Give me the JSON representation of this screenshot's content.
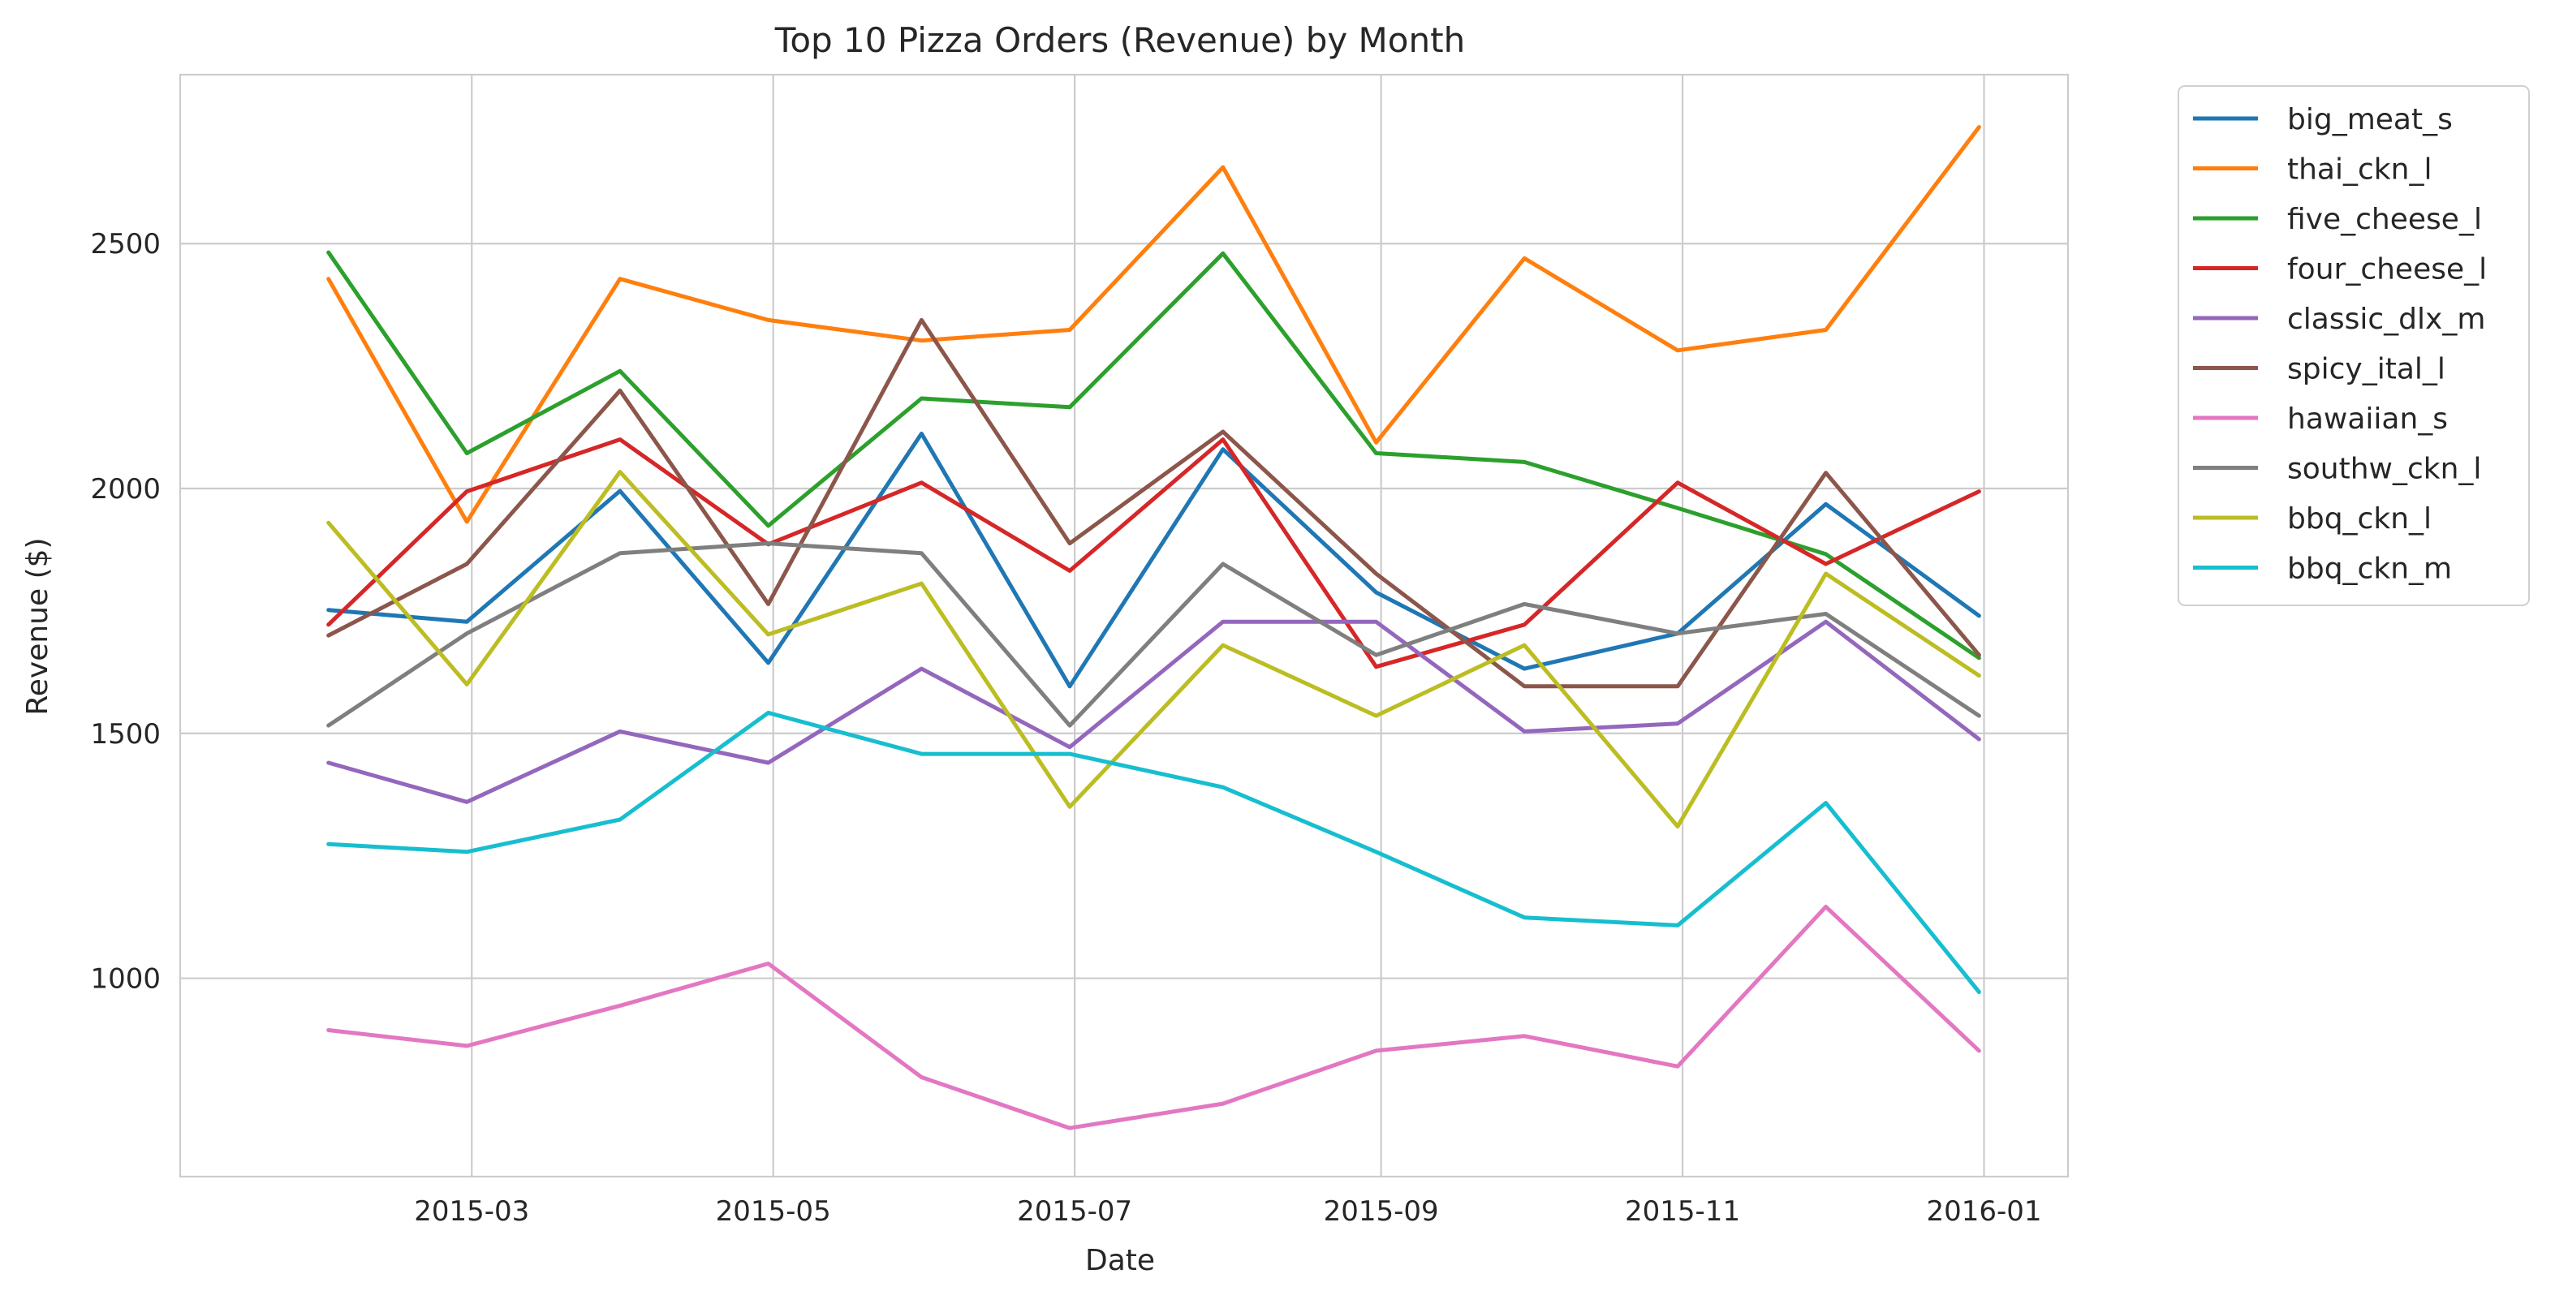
{
  "chart_data": {
    "type": "line",
    "title": "Top 10 Pizza Orders (Revenue) by Month",
    "xlabel": "Date",
    "ylabel": "Revenue ($)",
    "x": [
      "2015-01-31",
      "2015-02-28",
      "2015-03-31",
      "2015-04-30",
      "2015-05-31",
      "2015-06-30",
      "2015-07-31",
      "2015-08-31",
      "2015-09-30",
      "2015-10-31",
      "2015-11-30",
      "2015-12-31"
    ],
    "xlim": [
      "2015-01-01",
      "2016-01-18"
    ],
    "ylim": [
      595,
      2845
    ],
    "x_ticks": [
      "2015-03",
      "2015-05",
      "2015-07",
      "2015-09",
      "2015-11",
      "2016-01"
    ],
    "y_ticks": [
      1000,
      1500,
      2000,
      2500
    ],
    "grid": true,
    "legend_position": "outside-right",
    "series": [
      {
        "name": "big_meat_s",
        "color": "#1f77b4",
        "values": [
          1752,
          1728,
          1995,
          1644,
          2112,
          1596,
          2080,
          1788,
          1632,
          1704,
          1968,
          1740
        ]
      },
      {
        "name": "thai_ckn_l",
        "color": "#ff7f0e",
        "values": [
          2428,
          1932,
          2428,
          2344,
          2302,
          2324,
          2656,
          2094,
          2470,
          2282,
          2324,
          2738
        ]
      },
      {
        "name": "five_cheese_l",
        "color": "#2ca02c",
        "values": [
          2482,
          2072,
          2240,
          1924,
          2184,
          2166,
          2480,
          2072,
          2054,
          1960,
          1866,
          1654
        ]
      },
      {
        "name": "four_cheese_l",
        "color": "#d62728",
        "values": [
          1722,
          1994,
          2100,
          1886,
          2012,
          1832,
          2100,
          1636,
          1722,
          2012,
          1846,
          1994
        ]
      },
      {
        "name": "classic_dlx_m",
        "color": "#9467bd",
        "values": [
          1440,
          1360,
          1504,
          1440,
          1632,
          1472,
          1728,
          1728,
          1504,
          1520,
          1728,
          1488
        ]
      },
      {
        "name": "spicy_ital_l",
        "color": "#8c564b",
        "values": [
          1700,
          1846,
          2200,
          1764,
          2344,
          1888,
          2116,
          1826,
          1596,
          1596,
          2032,
          1660
        ]
      },
      {
        "name": "hawaiian_s",
        "color": "#e377c2",
        "values": [
          894,
          862,
          944,
          1030,
          798,
          694,
          744,
          852,
          882,
          820,
          1146,
          852
        ]
      },
      {
        "name": "southw_ckn_l",
        "color": "#7f7f7f",
        "values": [
          1516,
          1704,
          1868,
          1888,
          1868,
          1516,
          1846,
          1660,
          1764,
          1704,
          1744,
          1536
        ]
      },
      {
        "name": "bbq_ckn_l",
        "color": "#bcbd22",
        "values": [
          1930,
          1600,
          2034,
          1702,
          1806,
          1350,
          1680,
          1536,
          1680,
          1310,
          1826,
          1618
        ]
      },
      {
        "name": "bbq_ckn_m",
        "color": "#17becf",
        "values": [
          1274,
          1258,
          1324,
          1542,
          1458,
          1458,
          1390,
          1258,
          1124,
          1108,
          1358,
          972
        ]
      }
    ]
  }
}
